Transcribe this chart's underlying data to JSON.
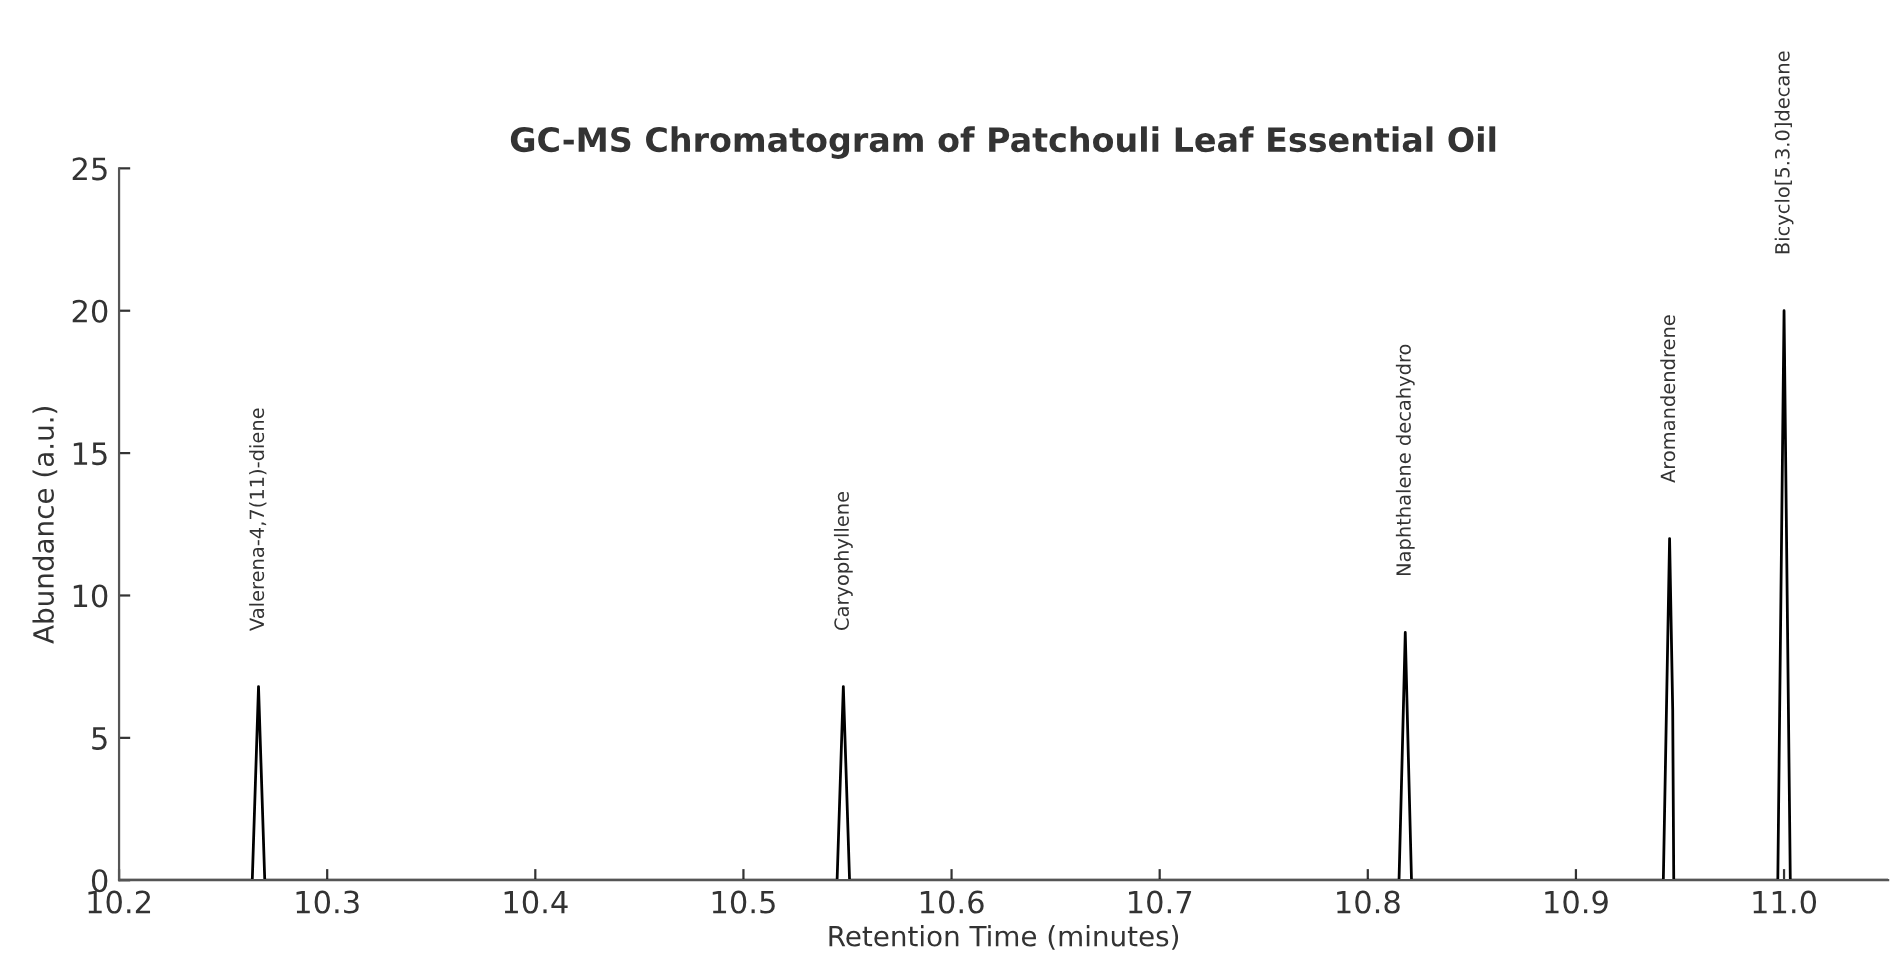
{
  "chart_data": {
    "type": "line",
    "title": "GC-MS Chromatogram of Patchouli Leaf Essential Oil",
    "xlabel": "Retention Time (minutes)",
    "ylabel": "Abundance (a.u.)",
    "series": [
      {
        "color": "#000000",
        "x": [
          10.2,
          10.264,
          10.2655,
          10.267,
          10.2685,
          10.27,
          10.545,
          10.5465,
          10.548,
          10.5495,
          10.551,
          10.815,
          10.8165,
          10.818,
          10.8195,
          10.821,
          10.942,
          10.9435,
          10.945,
          10.9465,
          10.947,
          10.997,
          10.9985,
          11.0,
          11.0015,
          11.003,
          11.05
        ],
        "values": [
          0,
          0,
          3.4,
          6.8,
          3.4,
          0,
          0,
          3.4,
          6.8,
          3.4,
          0,
          0,
          4.3,
          8.7,
          4.3,
          0,
          0,
          6.0,
          12.0,
          6.0,
          0,
          0,
          10.0,
          20.0,
          10.0,
          0,
          0
        ]
      }
    ],
    "xlim": [
      10.2,
      11.05
    ],
    "ylim": [
      0,
      25
    ],
    "xticks": [
      10.2,
      10.3,
      10.4,
      10.5,
      10.6,
      10.7,
      10.8,
      10.9,
      {
        "value": 11.0,
        "label": "11.0"
      }
    ],
    "yticks": [
      0,
      5,
      10,
      15,
      20,
      25
    ],
    "grid": false,
    "legend": false,
    "marker": "none",
    "line_style": "solid",
    "annotations": [
      {
        "text": "Valerena-4,7(11)-diene",
        "x": 10.267,
        "y": 6.8
      },
      {
        "text": "Caryophyllene",
        "x": 10.548,
        "y": 6.8
      },
      {
        "text": "Naphthalene decahydro",
        "x": 10.818,
        "y": 8.7
      },
      {
        "text": "Aromandendrene",
        "x": 10.945,
        "y": 12.0
      },
      {
        "text": "Bicyclo[5.3.0]decane",
        "x": 11.0,
        "y": 20.0
      }
    ]
  }
}
